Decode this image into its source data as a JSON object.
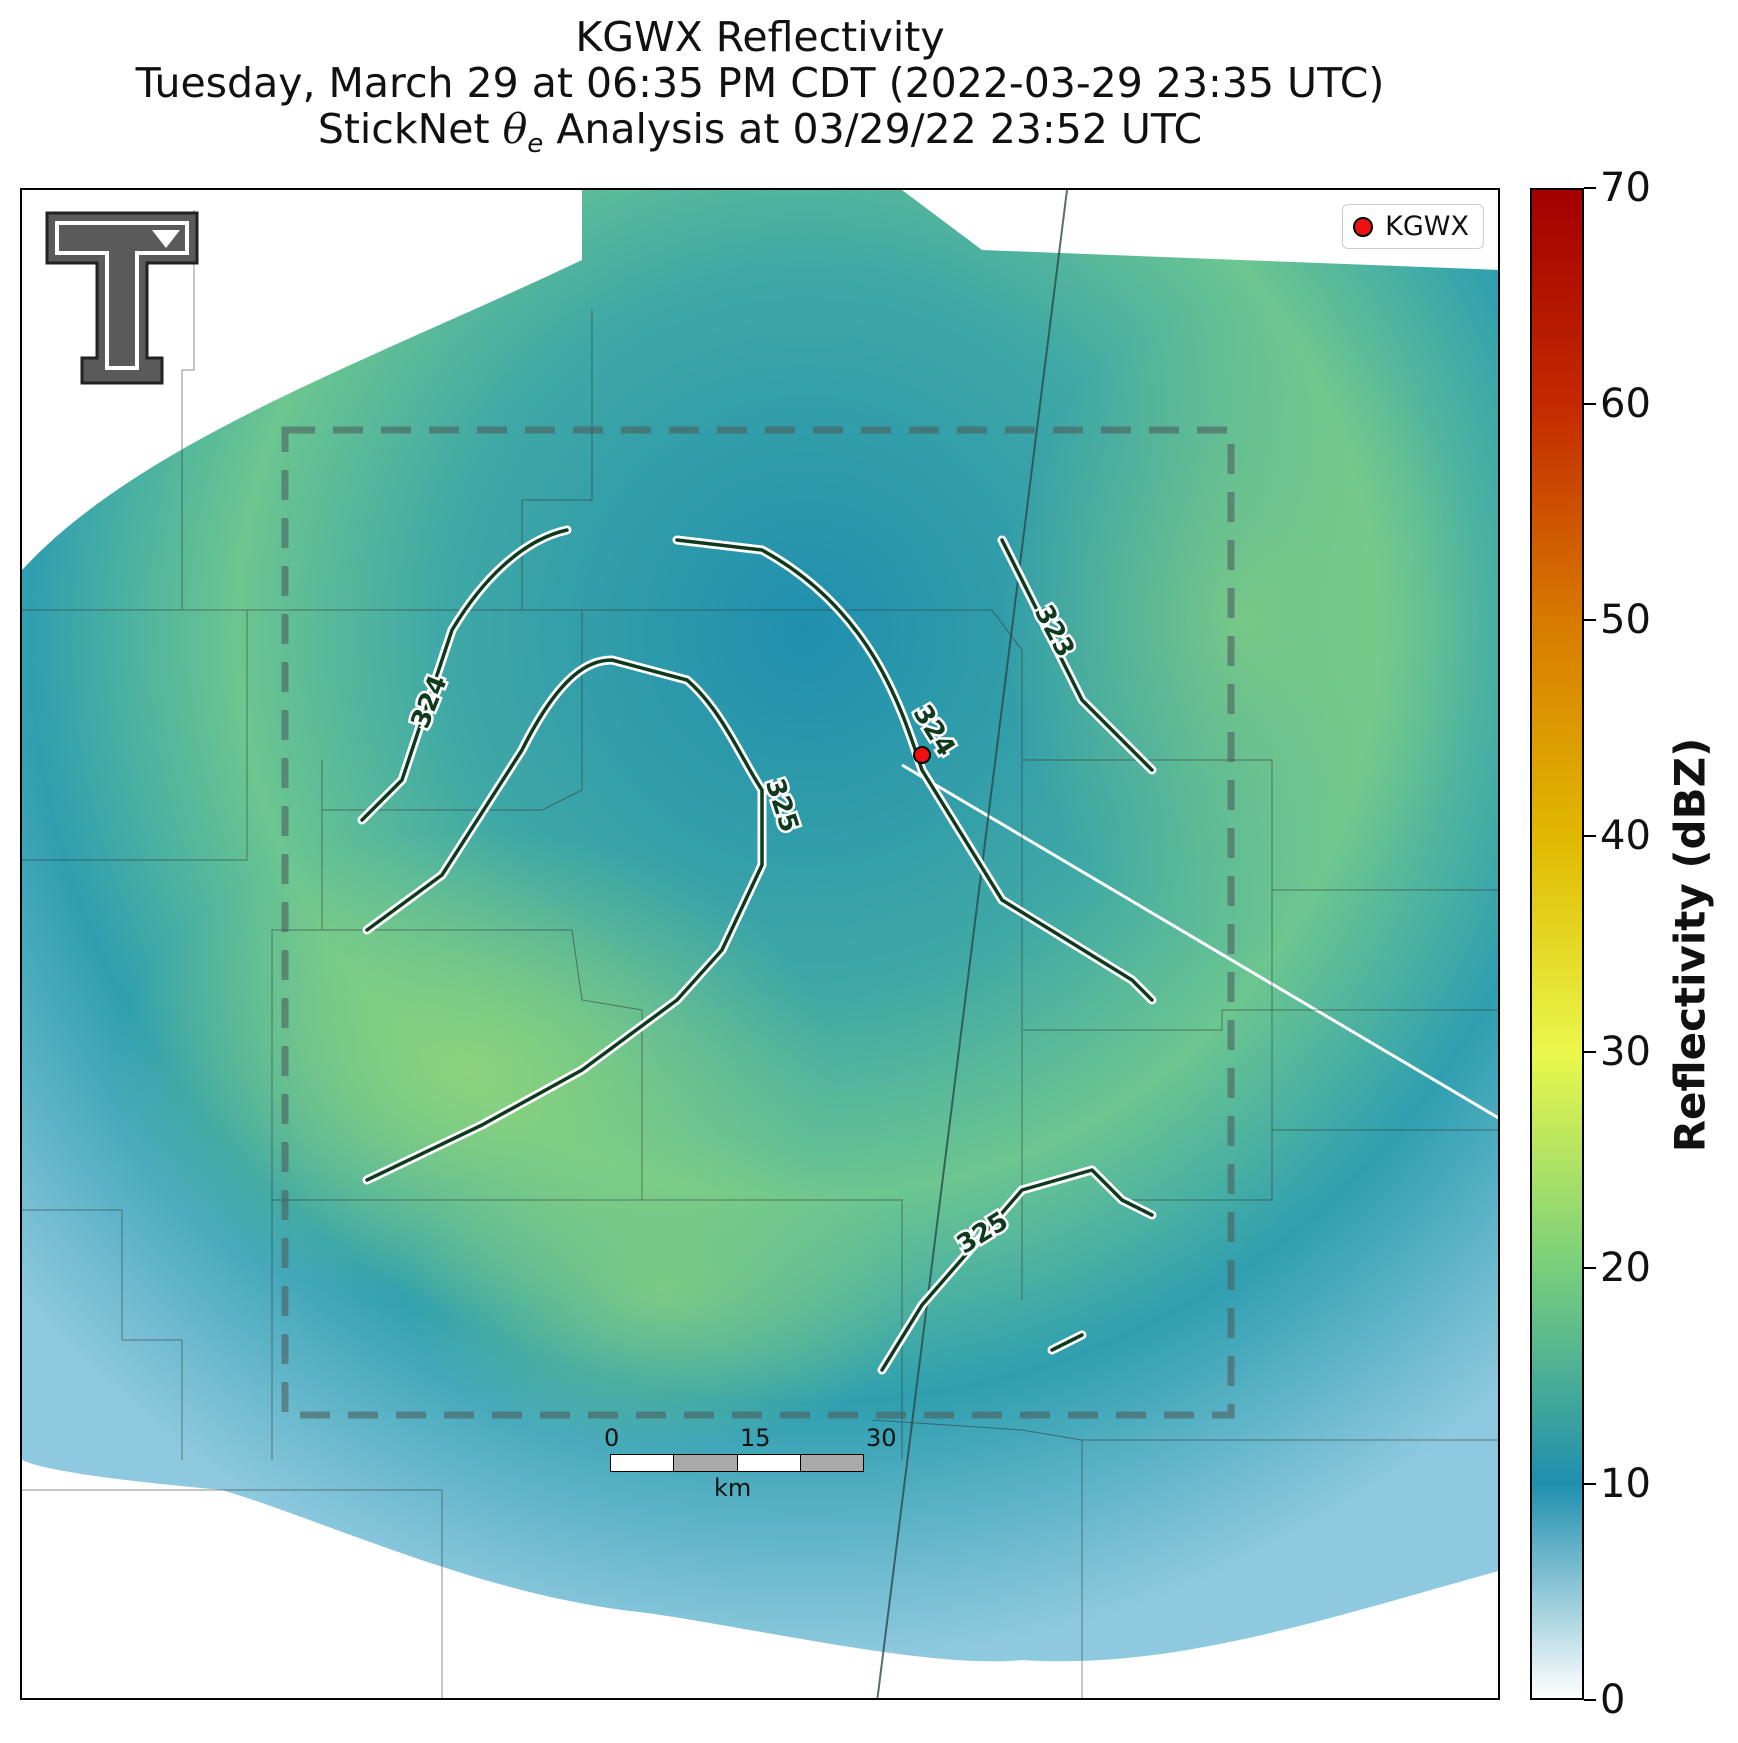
{
  "title": {
    "line1": "KGWX Reflectivity",
    "line2": "Tuesday, March 29 at 06:35 PM CDT (2022-03-29 23:35 UTC)",
    "line3_prefix": "StickNet",
    "line3_symbol": "θ",
    "line3_sub": "e",
    "line3_suffix": "Analysis at 03/29/22 23:52 UTC"
  },
  "legend": {
    "label": "KGWX",
    "marker_color": "#ee1111"
  },
  "colorbar": {
    "title": "Reflectivity (dBZ)",
    "min": 0,
    "max": 70,
    "ticks": [
      "0",
      "10",
      "20",
      "30",
      "40",
      "50",
      "60",
      "70"
    ],
    "colors": [
      "#ffffff",
      "#1f8fae",
      "#79cf7c",
      "#eaf74a",
      "#e0b800",
      "#d87a00",
      "#c32a00",
      "#a30000"
    ]
  },
  "scalebar": {
    "ticks": [
      "0",
      "15",
      "30"
    ],
    "unit": "km"
  },
  "contours": {
    "labels": [
      "323",
      "324",
      "324",
      "325",
      "325"
    ],
    "line_color": "#0f3a1e"
  },
  "radar": {
    "site": "KGWX"
  }
}
